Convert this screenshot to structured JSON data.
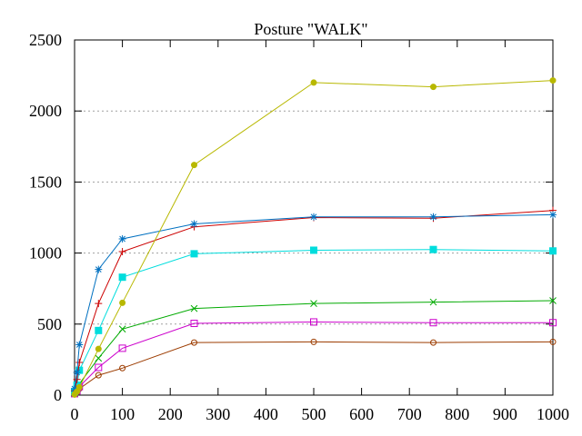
{
  "chart_data": {
    "type": "line",
    "title": "Posture \"WALK\"",
    "xlabel": "",
    "ylabel": "",
    "xlim": [
      0,
      1000
    ],
    "ylim": [
      0,
      2500
    ],
    "xticks": [
      0,
      100,
      200,
      300,
      400,
      500,
      600,
      700,
      800,
      900,
      1000
    ],
    "yticks": [
      0,
      500,
      1000,
      1500,
      2000,
      2500
    ],
    "grid": "horizontal dotted",
    "legend": "none",
    "x": [
      0,
      5,
      10,
      50,
      100,
      250,
      500,
      750,
      1000
    ],
    "series": [
      {
        "color": "#9c3c00",
        "marker": "open-circle",
        "values": [
          5,
          20,
          45,
          140,
          190,
          370,
          375,
          370,
          375
        ]
      },
      {
        "color": "#cc00cc",
        "marker": "open-square",
        "values": [
          10,
          30,
          60,
          195,
          330,
          505,
          515,
          510,
          510
        ]
      },
      {
        "color": "#00aa00",
        "marker": "x",
        "values": [
          15,
          40,
          80,
          260,
          465,
          610,
          645,
          655,
          665
        ]
      },
      {
        "color": "#00dddd",
        "marker": "filled-square",
        "values": [
          25,
          70,
          175,
          455,
          830,
          995,
          1020,
          1025,
          1015
        ]
      },
      {
        "color": "#cc0000",
        "marker": "plus",
        "values": [
          30,
          110,
          230,
          645,
          1010,
          1185,
          1250,
          1245,
          1300
        ]
      },
      {
        "color": "#0070c0",
        "marker": "star",
        "values": [
          45,
          160,
          355,
          885,
          1100,
          1205,
          1255,
          1255,
          1270
        ]
      },
      {
        "color": "#b8b800",
        "marker": "filled-circle",
        "values": [
          5,
          25,
          55,
          325,
          650,
          1620,
          2200,
          2170,
          2215
        ]
      }
    ]
  }
}
